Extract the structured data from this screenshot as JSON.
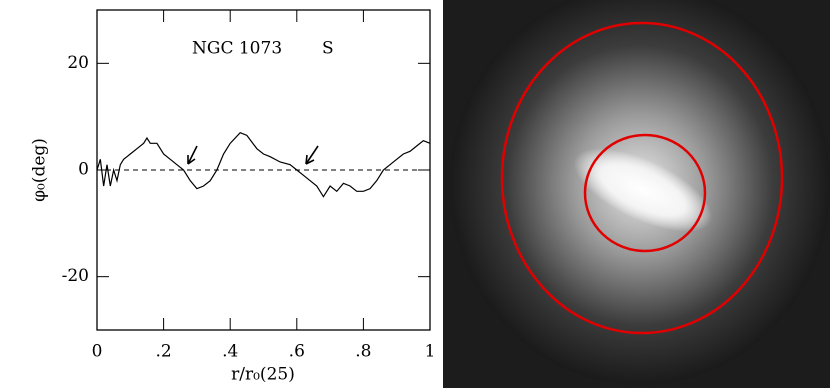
{
  "chart_data": {
    "type": "line",
    "annotations": [
      "NGC 1073",
      "S"
    ],
    "xlabel": "r/r₀(25)",
    "ylabel": "φ₀(deg)",
    "xlim": [
      0,
      1
    ],
    "ylim": [
      -30,
      30
    ],
    "xticks": [
      0,
      {
        "value": 0.2,
        "label": ".2"
      },
      {
        "value": 0.4,
        "label": ".4"
      },
      {
        "value": 0.6,
        "label": ".6"
      },
      {
        "value": 0.8,
        "label": ".8"
      },
      1
    ],
    "yticks": [
      -20,
      0,
      20
    ],
    "reference_line": 0,
    "color": "#000000",
    "x": [
      0.0,
      0.01,
      0.02,
      0.03,
      0.04,
      0.05,
      0.06,
      0.07,
      0.08,
      0.1,
      0.12,
      0.14,
      0.15,
      0.16,
      0.18,
      0.2,
      0.22,
      0.24,
      0.26,
      0.28,
      0.3,
      0.32,
      0.34,
      0.36,
      0.38,
      0.4,
      0.43,
      0.45,
      0.48,
      0.5,
      0.52,
      0.55,
      0.58,
      0.6,
      0.62,
      0.64,
      0.66,
      0.68,
      0.7,
      0.72,
      0.74,
      0.76,
      0.78,
      0.8,
      0.82,
      0.84,
      0.86,
      0.88,
      0.9,
      0.92,
      0.94,
      0.96,
      0.98,
      1.0
    ],
    "values": [
      0,
      2,
      -3,
      1,
      -3,
      0,
      -2,
      1,
      2,
      3,
      4,
      5,
      6,
      5,
      5,
      3,
      2,
      1,
      0,
      -2,
      -3.5,
      -3,
      -2,
      0,
      3,
      5,
      7,
      6.5,
      4,
      3,
      2.5,
      1.5,
      1,
      0,
      -1,
      -2,
      -3,
      -5,
      -3,
      -4,
      -2.5,
      -3,
      -4,
      -4,
      -3.5,
      -2,
      0,
      1,
      2,
      3,
      3.5,
      4.5,
      5.5,
      5
    ]
  }
}
